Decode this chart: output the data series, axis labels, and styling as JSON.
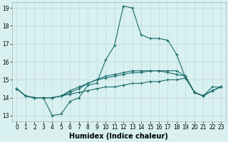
{
  "xlabel": "Humidex (Indice chaleur)",
  "x": [
    0,
    1,
    2,
    3,
    4,
    5,
    6,
    7,
    8,
    9,
    10,
    11,
    12,
    13,
    14,
    15,
    16,
    17,
    18,
    19,
    20,
    21,
    22,
    23
  ],
  "lines": [
    [
      14.5,
      14.1,
      14.0,
      14.0,
      13.0,
      13.1,
      13.8,
      14.0,
      14.7,
      14.8,
      16.1,
      16.9,
      19.1,
      19.0,
      17.5,
      17.3,
      17.3,
      17.2,
      16.4,
      15.1,
      14.3,
      14.1,
      14.6,
      14.6
    ],
    [
      14.5,
      14.1,
      14.0,
      14.0,
      14.0,
      14.1,
      14.3,
      14.5,
      14.8,
      15.0,
      15.1,
      15.2,
      15.3,
      15.4,
      15.4,
      15.5,
      15.5,
      15.5,
      15.5,
      15.2,
      14.3,
      14.1,
      14.4,
      14.6
    ],
    [
      14.5,
      14.1,
      14.0,
      14.0,
      14.0,
      14.1,
      14.4,
      14.6,
      14.8,
      15.0,
      15.2,
      15.3,
      15.4,
      15.5,
      15.5,
      15.5,
      15.5,
      15.4,
      15.3,
      15.2,
      14.3,
      14.1,
      14.4,
      14.6
    ],
    [
      14.5,
      14.1,
      14.0,
      14.0,
      14.0,
      14.1,
      14.2,
      14.3,
      14.4,
      14.5,
      14.6,
      14.6,
      14.7,
      14.8,
      14.8,
      14.9,
      14.9,
      15.0,
      15.0,
      15.1,
      14.3,
      14.1,
      14.4,
      14.6
    ]
  ],
  "line_color": "#1a6b6b",
  "marker": "+",
  "markersize": 3,
  "linewidth": 0.8,
  "ylim": [
    13,
    19
  ],
  "yticks": [
    13,
    14,
    15,
    16,
    17,
    18,
    19
  ],
  "xlim": [
    -0.5,
    23.5
  ],
  "xticks": [
    0,
    1,
    2,
    3,
    4,
    5,
    6,
    7,
    8,
    9,
    10,
    11,
    12,
    13,
    14,
    15,
    16,
    17,
    18,
    19,
    20,
    21,
    22,
    23
  ],
  "bg_color": "#d8f0f0",
  "grid_color": "#c4d8d8",
  "tick_fontsize": 5.5,
  "xlabel_fontsize": 7.0
}
